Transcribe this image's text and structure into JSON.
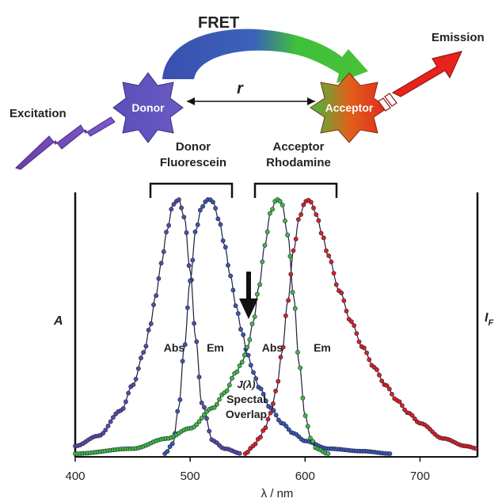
{
  "diagram": {
    "title": "FRET",
    "excitation_label": "Excitation",
    "emission_label": "Emission",
    "donor_label": "Donor",
    "acceptor_label": "Acceptor",
    "distance_label": "r",
    "donor_dye_line1": "Donor",
    "donor_dye_line2": "Fluorescein",
    "acceptor_dye_line1": "Acceptor",
    "acceptor_dye_line2": "Rhodamine",
    "left_axis_label": "A",
    "right_axis_label_main": "I",
    "right_axis_label_sub": "F",
    "abs_label_donor": "Abs",
    "em_label_donor": "Em",
    "abs_label_acceptor": "Abs",
    "em_label_acceptor": "Em",
    "overlap_line1": "J(λ)",
    "overlap_line2": "Spectal",
    "overlap_line3": "Overlap",
    "colors": {
      "donor": "#5a4aa8",
      "donor_em": "#3a58b0",
      "acceptor_abs": "#3cbf3c",
      "acceptor_em": "#e02020",
      "arrow_blue": "#3a4fb0",
      "arrow_green": "#3fbf3a",
      "emission": "#e8231c"
    }
  },
  "chart_data": {
    "type": "line",
    "xlabel": "λ / nm",
    "ylabel": "A",
    "ylabel_right": "IF",
    "xlim": [
      400,
      750
    ],
    "xticks": [
      400,
      500,
      600,
      700
    ],
    "series": [
      {
        "name": "Donor Fluorescein Abs",
        "color": "#5a4aa8",
        "peak": 490,
        "x": [
          400,
          420,
          440,
          450,
          460,
          465,
          470,
          475,
          480,
          485,
          490,
          495,
          500,
          505,
          510,
          520,
          530,
          545
        ],
        "y": [
          0.03,
          0.07,
          0.17,
          0.27,
          0.4,
          0.5,
          0.62,
          0.75,
          0.88,
          0.98,
          1.0,
          0.93,
          0.72,
          0.45,
          0.2,
          0.05,
          0.02,
          0.0
        ]
      },
      {
        "name": "Donor Fluorescein Em",
        "color": "#3a58b0",
        "peak": 517,
        "x": [
          478,
          485,
          490,
          495,
          500,
          505,
          510,
          515,
          517,
          520,
          525,
          530,
          535,
          540,
          545,
          550,
          555,
          560,
          570,
          580,
          590,
          600,
          620,
          650,
          675
        ],
        "y": [
          0.0,
          0.04,
          0.18,
          0.42,
          0.68,
          0.88,
          0.97,
          1.0,
          1.0,
          0.99,
          0.92,
          0.82,
          0.7,
          0.58,
          0.48,
          0.39,
          0.32,
          0.26,
          0.18,
          0.12,
          0.08,
          0.05,
          0.02,
          0.01,
          0.0
        ]
      },
      {
        "name": "Acceptor Rhodamine Abs",
        "color": "#3cbf3c",
        "peak": 577,
        "x": [
          400,
          450,
          480,
          500,
          520,
          530,
          540,
          545,
          550,
          555,
          560,
          565,
          570,
          575,
          577,
          580,
          585,
          590,
          595,
          600,
          605,
          610,
          620
        ],
        "y": [
          0.0,
          0.02,
          0.06,
          0.1,
          0.18,
          0.24,
          0.32,
          0.36,
          0.42,
          0.52,
          0.66,
          0.82,
          0.95,
          1.0,
          1.0,
          0.98,
          0.86,
          0.62,
          0.35,
          0.15,
          0.06,
          0.02,
          0.0
        ]
      },
      {
        "name": "Acceptor Rhodamine Em",
        "color": "#e02020",
        "peak": 602,
        "x": [
          548,
          555,
          560,
          565,
          570,
          575,
          580,
          585,
          590,
          595,
          600,
          602,
          605,
          610,
          615,
          620,
          630,
          640,
          650,
          660,
          670,
          680,
          690,
          700,
          720,
          740,
          750
        ],
        "y": [
          0.0,
          0.03,
          0.06,
          0.1,
          0.16,
          0.25,
          0.4,
          0.6,
          0.8,
          0.93,
          0.99,
          1.0,
          0.99,
          0.94,
          0.86,
          0.78,
          0.64,
          0.52,
          0.42,
          0.34,
          0.27,
          0.21,
          0.16,
          0.12,
          0.06,
          0.03,
          0.02
        ]
      }
    ]
  }
}
